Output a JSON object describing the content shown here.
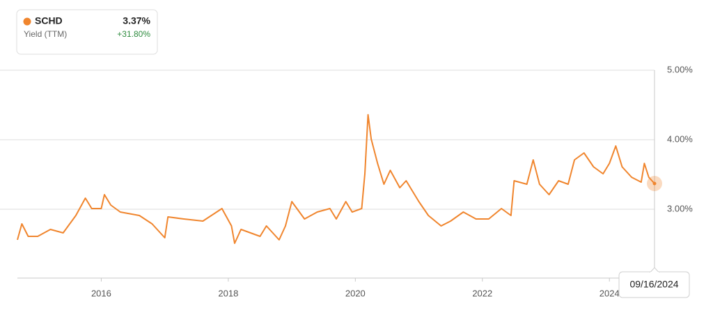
{
  "chart_data": {
    "type": "line",
    "series": [
      {
        "name": "SCHD",
        "metric": "Yield (TTM)",
        "color": "#f0852d",
        "current": {
          "value": 3.37,
          "label": "3.37%"
        },
        "change": {
          "value": 31.8,
          "label": "+31.80%"
        },
        "x": [
          2014.68,
          2014.75,
          2014.85,
          2015.0,
          2015.2,
          2015.4,
          2015.6,
          2015.75,
          2015.85,
          2016.0,
          2016.05,
          2016.15,
          2016.3,
          2016.6,
          2016.8,
          2017.0,
          2017.05,
          2017.3,
          2017.6,
          2017.9,
          2018.05,
          2018.1,
          2018.2,
          2018.5,
          2018.6,
          2018.8,
          2018.9,
          2019.0,
          2019.2,
          2019.4,
          2019.6,
          2019.7,
          2019.85,
          2019.95,
          2020.1,
          2020.15,
          2020.2,
          2020.25,
          2020.35,
          2020.45,
          2020.55,
          2020.7,
          2020.8,
          2021.0,
          2021.15,
          2021.35,
          2021.5,
          2021.7,
          2021.9,
          2022.1,
          2022.3,
          2022.45,
          2022.5,
          2022.7,
          2022.8,
          2022.9,
          2023.05,
          2023.2,
          2023.35,
          2023.45,
          2023.6,
          2023.75,
          2023.9,
          2024.0,
          2024.1,
          2024.2,
          2024.35,
          2024.5,
          2024.55,
          2024.62,
          2024.71
        ],
        "values": [
          2.56,
          2.79,
          2.61,
          2.61,
          2.71,
          2.66,
          2.91,
          3.16,
          3.01,
          3.01,
          3.21,
          3.06,
          2.96,
          2.91,
          2.79,
          2.59,
          2.89,
          2.86,
          2.83,
          3.01,
          2.76,
          2.51,
          2.71,
          2.61,
          2.76,
          2.56,
          2.76,
          3.11,
          2.86,
          2.96,
          3.01,
          2.86,
          3.11,
          2.96,
          3.01,
          3.51,
          4.36,
          4.01,
          3.66,
          3.36,
          3.56,
          3.31,
          3.41,
          3.11,
          2.91,
          2.76,
          2.83,
          2.96,
          2.86,
          2.86,
          3.01,
          2.91,
          3.41,
          3.36,
          3.71,
          3.36,
          3.21,
          3.41,
          3.36,
          3.71,
          3.81,
          3.61,
          3.51,
          3.66,
          3.91,
          3.61,
          3.46,
          3.39,
          3.66,
          3.46,
          3.37
        ]
      }
    ],
    "xlim": [
      2014.68,
      2024.71
    ],
    "xticks": [
      2016,
      2018,
      2020,
      2022,
      2024
    ],
    "ylim": [
      2,
      5
    ],
    "yticks": [
      {
        "value": 3,
        "label": "3.00%"
      },
      {
        "value": 4,
        "label": "4.00%"
      },
      {
        "value": 5,
        "label": "5.00%"
      }
    ],
    "grid": true,
    "tooltip_date": "09/16/2024"
  }
}
